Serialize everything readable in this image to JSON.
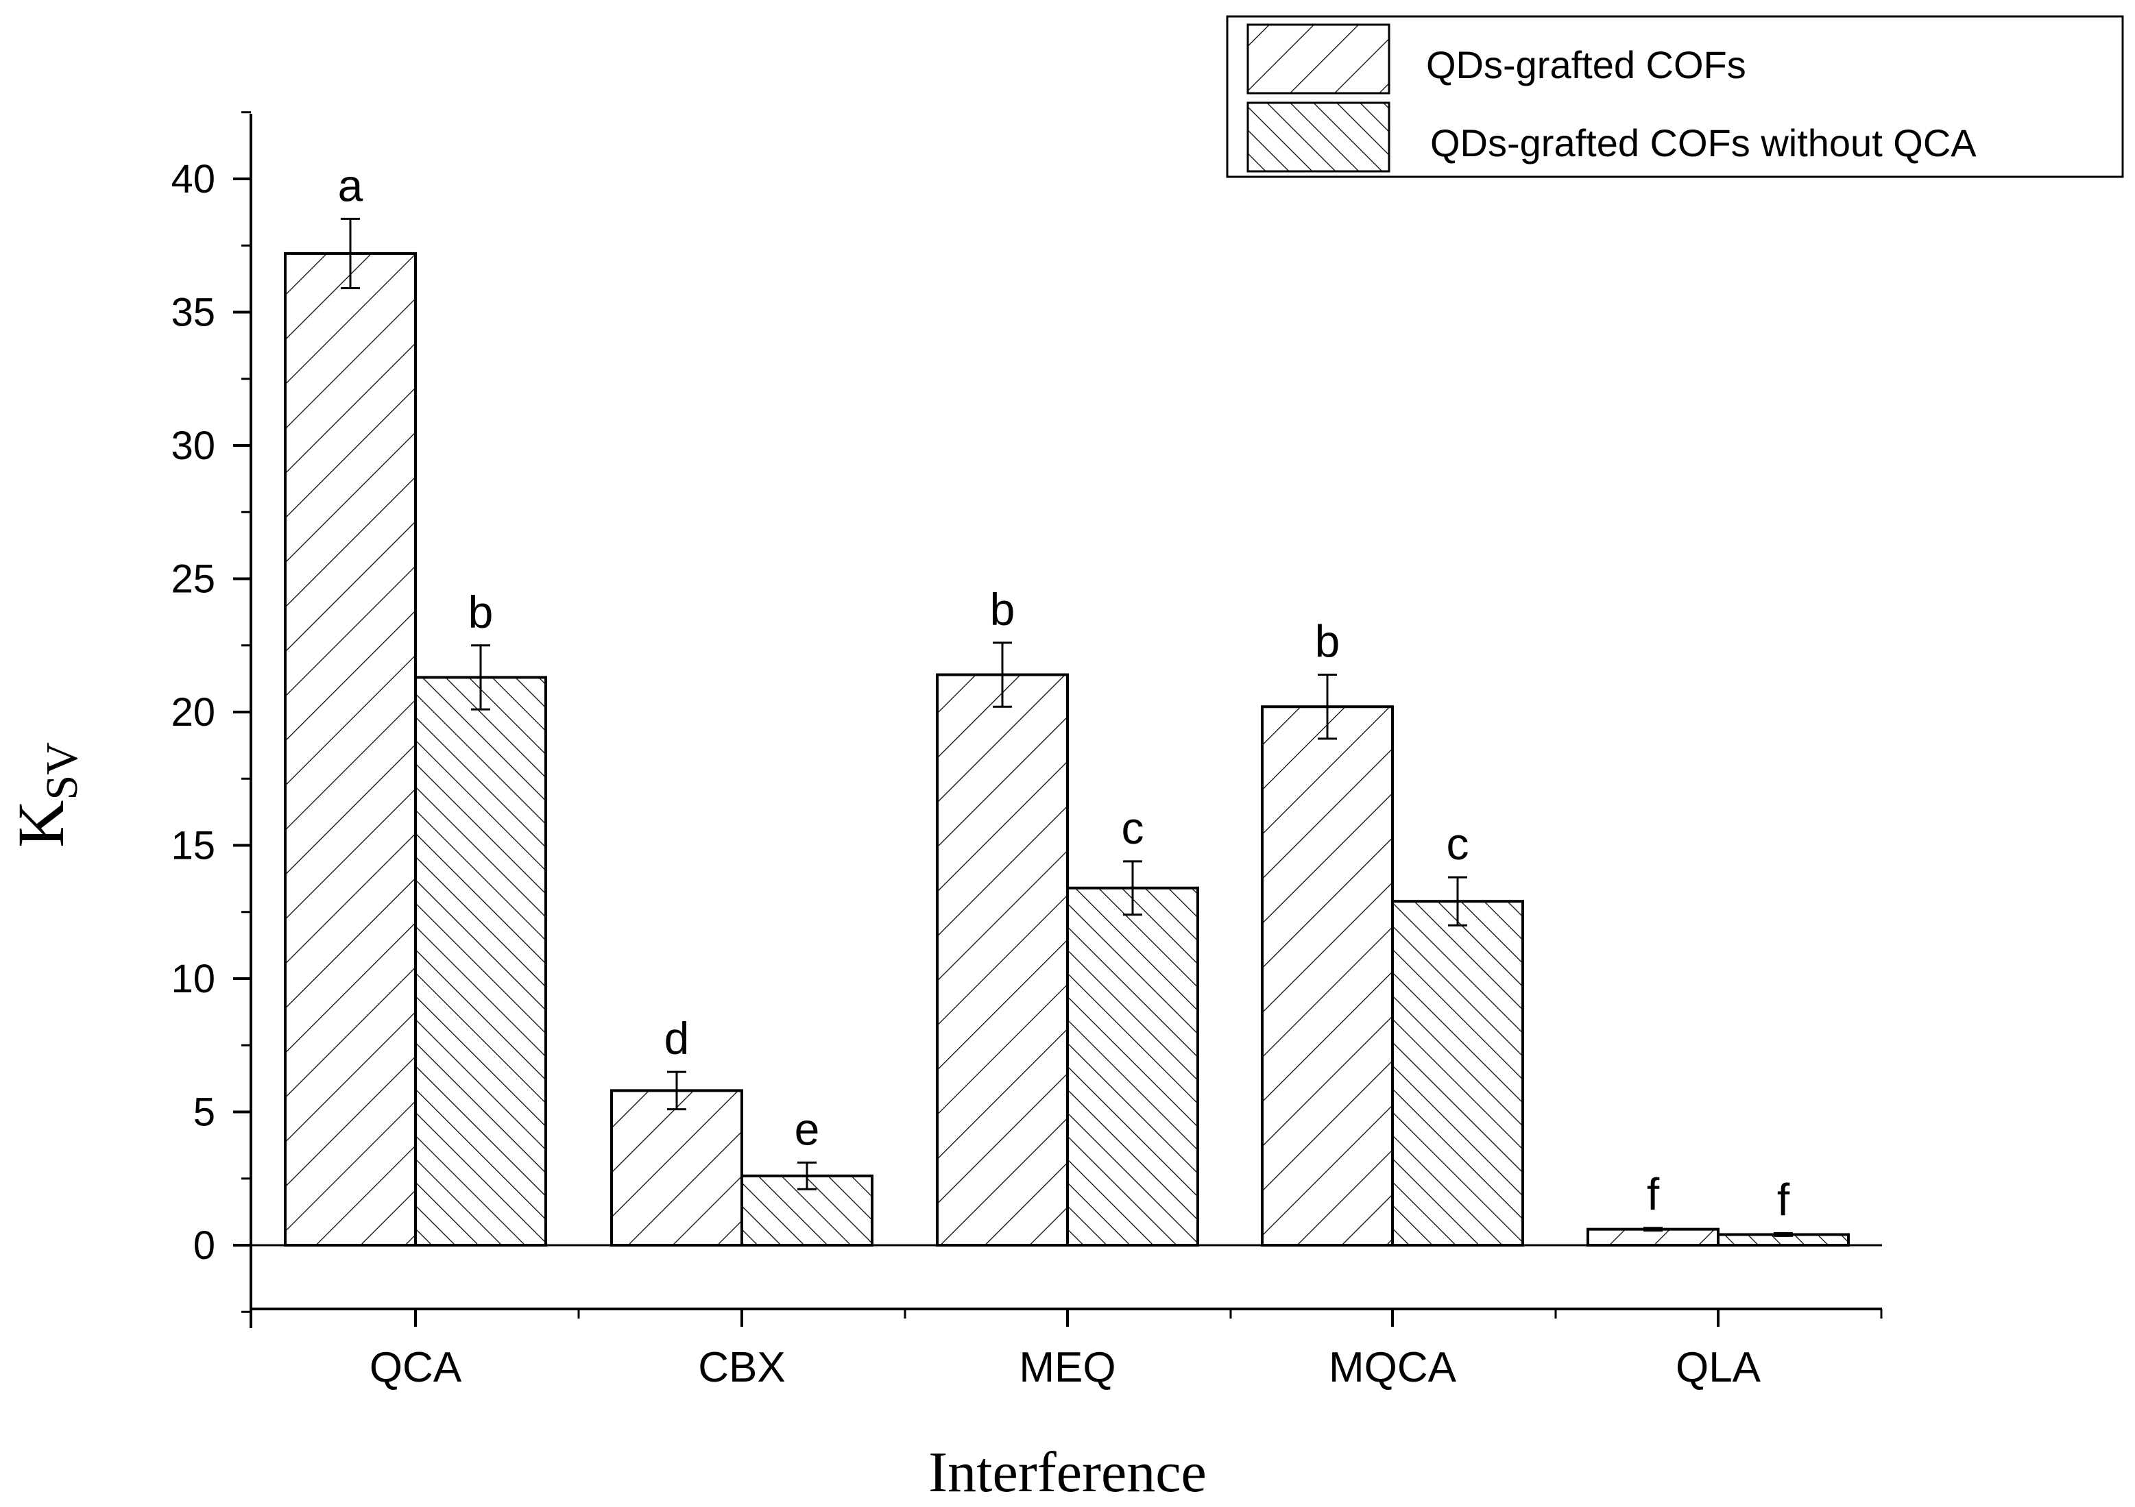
{
  "chart_data": {
    "type": "bar",
    "title": "",
    "xlabel": "Interference",
    "ylabel": "K",
    "ylabel_subscript": "SV",
    "ylim": [
      -2.5,
      42.5
    ],
    "yticks": [
      0,
      5,
      10,
      15,
      20,
      25,
      30,
      35,
      40
    ],
    "categories": [
      "QCA",
      "CBX",
      "MEQ",
      "MQCA",
      "QLA"
    ],
    "series": [
      {
        "name": "QDs-grafted COFs",
        "pattern": "forward-hatch",
        "values": [
          37.2,
          5.8,
          21.4,
          20.2,
          0.6
        ],
        "errors": [
          1.3,
          0.7,
          1.2,
          1.2,
          0.05
        ],
        "labels": [
          "a",
          "d",
          "b",
          "b",
          "f"
        ]
      },
      {
        "name": "QDs-grafted COFs without QCA",
        "pattern": "back-hatch",
        "values": [
          21.3,
          2.6,
          13.4,
          12.9,
          0.4
        ],
        "errors": [
          1.2,
          0.5,
          1.0,
          0.9,
          0.05
        ],
        "labels": [
          "b",
          "e",
          "c",
          "c",
          "f"
        ]
      }
    ],
    "legend_position": "top-right",
    "colors": {
      "bar_fill": "#ffffff",
      "stroke": "#000000",
      "background": "#ffffff"
    }
  }
}
